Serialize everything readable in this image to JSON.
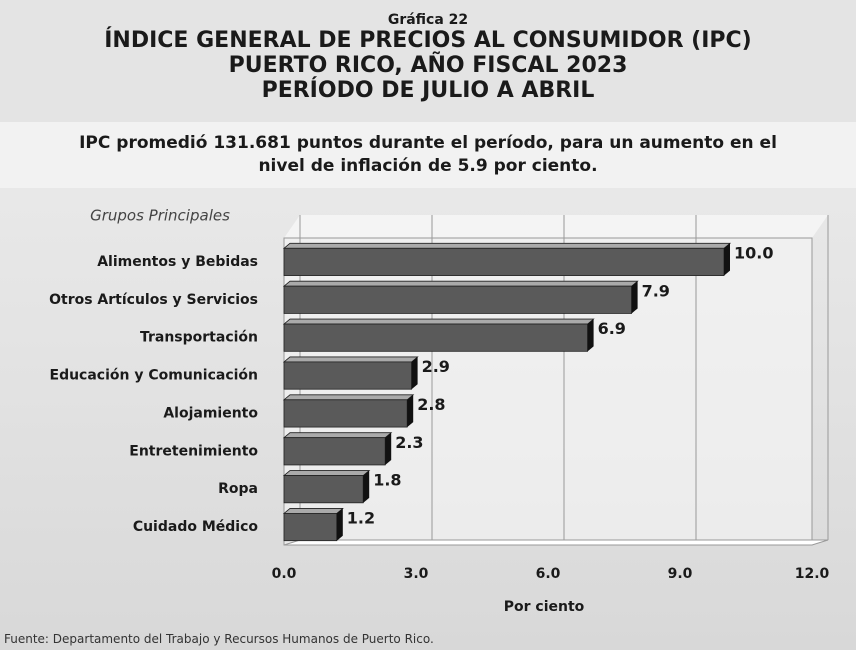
{
  "chart_data": {
    "type": "bar",
    "orientation": "horizontal",
    "label": "Gráfica 22",
    "title": [
      "ÍNDICE GENERAL DE PRECIOS AL CONSUMIDOR (IPC)",
      "PUERTO RICO, AÑO FISCAL 2023",
      "PERÍODO DE JULIO A ABRIL"
    ],
    "subtitle": "IPC promedió 131.681 puntos durante el período, para un aumento en el nivel de inflación de 5.9 por ciento.",
    "y_label": "Grupos Principales",
    "x_label": "Por ciento",
    "source": "Fuente: Departamento del Trabajo y Recursos Humanos de Puerto Rico.",
    "categories": [
      "Alimentos y Bebidas",
      "Otros Artículos y Servicios",
      "Transportación",
      "Educación y Comunicación",
      "Alojamiento",
      "Entretenimiento",
      "Ropa",
      "Cuidado Médico"
    ],
    "values": [
      10.0,
      7.9,
      6.9,
      2.9,
      2.8,
      2.3,
      1.8,
      1.2
    ],
    "value_labels": [
      "10.0",
      "7.9",
      "6.9",
      "2.9",
      "2.8",
      "2.3",
      "1.8",
      "1.2"
    ],
    "color": "#5a5a5a",
    "xlim": [
      0,
      12
    ],
    "xticks": [
      {
        "value": 0,
        "label": "0.0"
      },
      {
        "value": 3,
        "label": "3.0"
      },
      {
        "value": 6,
        "label": "6.0"
      },
      {
        "value": 9,
        "label": "9.0"
      },
      {
        "value": 12,
        "label": "12.0"
      }
    ],
    "grid": true
  }
}
